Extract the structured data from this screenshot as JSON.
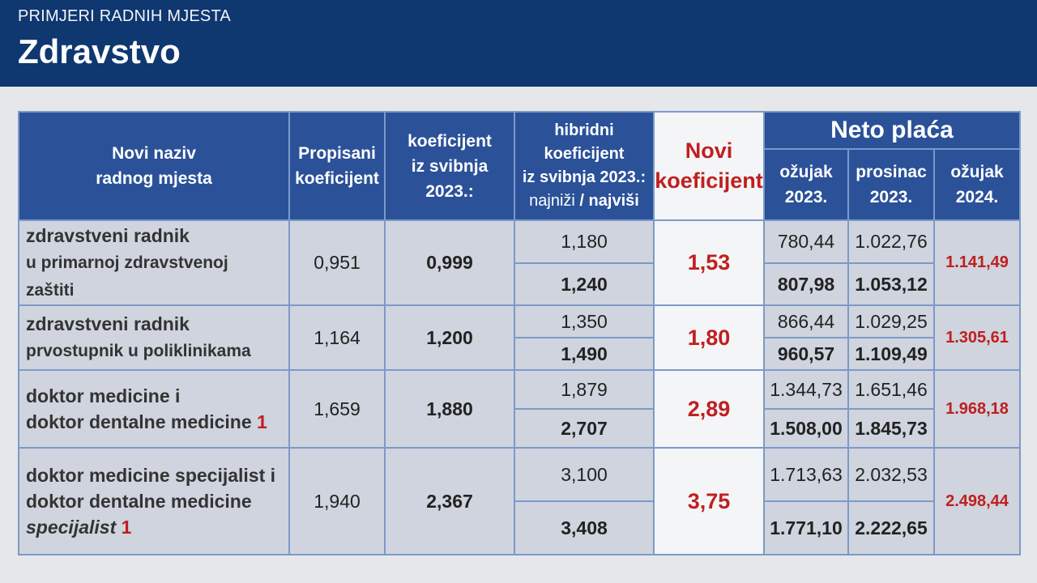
{
  "header": {
    "kicker": "PRIMJERI RADNIH MJESTA",
    "title": "Zdravstvo"
  },
  "columns": {
    "name": "Novi naziv radnog mjesta",
    "name_l1": "Novi naziv",
    "name_l2": "radnog mjesta",
    "propisani_l1": "Propisani",
    "propisani_l2": "koeficijent",
    "svibanj_l1": "koeficijent",
    "svibanj_l2": "iz svibnja",
    "svibanj_l3": "2023.:",
    "hibrid_l1": "hibridni",
    "hibrid_l2": "koeficijent",
    "hibrid_l3": "iz svibnja 2023.:",
    "hibrid_low": "najniži",
    "hibrid_sep": " / ",
    "hibrid_high": "najviši",
    "novi_l1": "Novi",
    "novi_l2": "koeficijent",
    "neto": "Neto plaća",
    "ozujak23_l1": "ožujak",
    "ozujak23_l2": "2023.",
    "prosinac23_l1": "prosinac",
    "prosinac23_l2": "2023.",
    "ozujak24_l1": "ožujak",
    "ozujak24_l2": "2024."
  },
  "rows": [
    {
      "name_l1": "zdravstveni radnik",
      "name_l2": "u primarnoj zdravstvenoj",
      "name_l3": "zaštiti",
      "propisani": "0,951",
      "svibanj": "0,999",
      "hibrid_low": "1,180",
      "hibrid_high": "1,240",
      "novi": "1,53",
      "ozujak23_low": "780,44",
      "ozujak23_high": "807,98",
      "prosinac23_low": "1.022,76",
      "prosinac23_high": "1.053,12",
      "ozujak24": "1.141,49"
    },
    {
      "name_l1": "zdravstveni radnik",
      "name_l2": "prvostupnik u poliklinikama",
      "propisani": "1,164",
      "svibanj": "1,200",
      "hibrid_low": "1,350",
      "hibrid_high": "1,490",
      "novi": "1,80",
      "ozujak23_low": "866,44",
      "ozujak23_high": "960,57",
      "prosinac23_low": "1.029,25",
      "prosinac23_high": "1.109,49",
      "ozujak24": "1.305,61"
    },
    {
      "name_l1": "doktor medicine i",
      "name_l2": "doktor dentalne medicine",
      "footnote": "1",
      "propisani": "1,659",
      "svibanj": "1,880",
      "hibrid_low": "1,879",
      "hibrid_high": "2,707",
      "novi": "2,89",
      "ozujak23_low": "1.344,73",
      "ozujak23_high": "1.508,00",
      "prosinac23_low": "1.651,46",
      "prosinac23_high": "1.845,73",
      "ozujak24": "1.968,18"
    },
    {
      "name_l1": "doktor medicine specijalist i",
      "name_l2": "doktor dentalne medicine",
      "name_l3": "specijalist",
      "footnote": "1",
      "propisani": "1,940",
      "svibanj": "2,367",
      "hibrid_low": "3,100",
      "hibrid_high": "3,408",
      "novi": "3,75",
      "ozujak23_low": "1.713,63",
      "ozujak23_high": "1.771,10",
      "prosinac23_low": "2.032,53",
      "prosinac23_high": "2.222,65",
      "ozujak24": "2.498,44"
    }
  ]
}
